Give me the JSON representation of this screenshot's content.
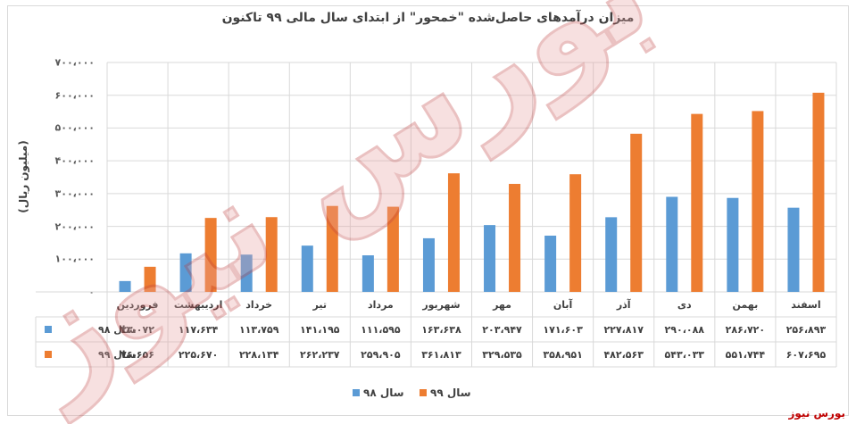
{
  "chart_data": {
    "type": "bar",
    "title": "میزان درآمدهای حاصل‌شده \"خمحور\" از ابتدای سال مالی ۹۹ تاکنون",
    "ylabel": "(میلیون ریال)",
    "ylim": [
      0,
      700000
    ],
    "yticks": [
      "۷۰۰،۰۰۰",
      "۶۰۰،۰۰۰",
      "۵۰۰،۰۰۰",
      "۴۰۰،۰۰۰",
      "۳۰۰،۰۰۰",
      "۲۰۰،۰۰۰",
      "۱۰۰،۰۰۰",
      "۰"
    ],
    "grid": true,
    "legend_position": "bottom",
    "categories": [
      "فروردین",
      "اردیبهشت",
      "خرداد",
      "تیر",
      "مرداد",
      "شهریور",
      "مهر",
      "آبان",
      "آذر",
      "دی",
      "بهمن",
      "اسفند"
    ],
    "series": [
      {
        "name": "سال ۹۸",
        "color": "#5b9bd5",
        "values": [
          33072,
          117634,
          113759,
          141195,
          111595,
          163638,
          203947,
          171603,
          227817,
          290088,
          286720,
          256893
        ],
        "labels": [
          "۳۳،۰۷۲",
          "۱۱۷،۶۳۴",
          "۱۱۳،۷۵۹",
          "۱۴۱،۱۹۵",
          "۱۱۱،۵۹۵",
          "۱۶۳،۶۳۸",
          "۲۰۳،۹۴۷",
          "۱۷۱،۶۰۳",
          "۲۲۷،۸۱۷",
          "۲۹۰،۰۸۸",
          "۲۸۶،۷۲۰",
          "۲۵۶،۸۹۳"
        ]
      },
      {
        "name": "سال ۹۹",
        "color": "#ed7d31",
        "values": [
          76656,
          225670,
          228134,
          262237,
          259905,
          361813,
          329535,
          358951,
          482563,
          543033,
          551744,
          607695
        ],
        "labels": [
          "۷۶،۶۵۶",
          "۲۲۵،۶۷۰",
          "۲۲۸،۱۳۴",
          "۲۶۲،۲۳۷",
          "۲۵۹،۹۰۵",
          "۳۶۱،۸۱۳",
          "۳۲۹،۵۳۵",
          "۳۵۸،۹۵۱",
          "۴۸۲،۵۶۳",
          "۵۴۳،۰۳۳",
          "۵۵۱،۷۴۴",
          "۶۰۷،۶۹۵"
        ]
      }
    ]
  },
  "watermark": "بورس نیوز",
  "brand": "بورس نیوز"
}
